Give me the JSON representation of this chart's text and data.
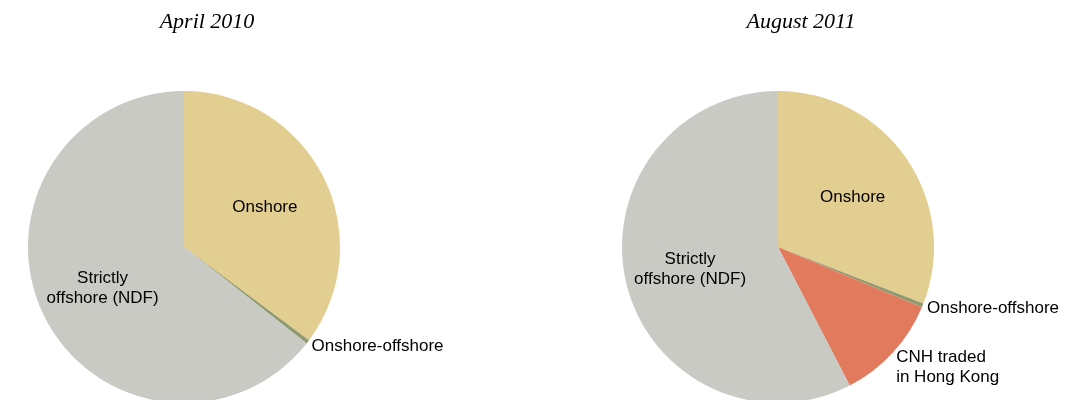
{
  "chart_data": [
    {
      "type": "pie",
      "title": "April 2010",
      "categories": [
        "Onshore",
        "Onshore-offshore",
        "Strictly offshore (NDF)"
      ],
      "values": [
        35.2,
        0.4,
        64.4
      ],
      "colors": [
        "#e3ce92",
        "#8f9a6e",
        "#cacac5"
      ]
    },
    {
      "type": "pie",
      "title": "August 2011",
      "categories": [
        "Onshore",
        "Onshore-offshore",
        "CNH traded in Hong Kong",
        "Strictly offshore (NDF)"
      ],
      "values": [
        30.9,
        0.4,
        11.1,
        57.6
      ],
      "colors": [
        "#e3ce92",
        "#8f9a6e",
        "#e27a5e",
        "#cacac5"
      ]
    }
  ]
}
